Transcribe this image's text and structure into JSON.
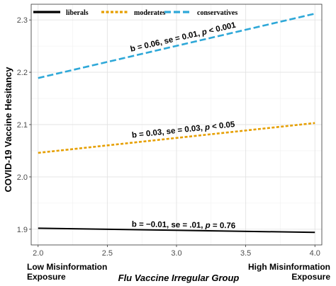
{
  "chart_data": {
    "type": "line",
    "xlabel": "Flu Vaccine Irregular Group",
    "ylabel": "COVID-19 Vaccine Hesitancy",
    "xlim": [
      1.95,
      4.05
    ],
    "ylim": [
      1.87,
      2.33
    ],
    "x_ticks": [
      "2.0",
      "2.5",
      "3.0",
      "3.5",
      "4.0"
    ],
    "y_ticks": [
      "1.9",
      "2.0",
      "2.1",
      "2.2",
      "2.3"
    ],
    "grid": true,
    "legend_position": "top",
    "x_end_labels": {
      "low": [
        "Low Misinformation",
        "Exposure"
      ],
      "high": [
        "High Misinformation",
        "Exposure"
      ]
    },
    "series": [
      {
        "name": "liberals",
        "style": "solid",
        "color": "#000000",
        "x": [
          2.0,
          4.0
        ],
        "y": [
          1.902,
          1.894
        ],
        "annotation": "b = −0.01, se = .01, p = 0.76"
      },
      {
        "name": "moderates",
        "style": "dotted",
        "color": "#E69F00",
        "x": [
          2.0,
          4.0
        ],
        "y": [
          2.046,
          2.103
        ],
        "annotation": "b = 0.03, se = 0.03, p < 0.05"
      },
      {
        "name": "conservatives",
        "style": "dashed",
        "color": "#2EA8D8",
        "x": [
          2.0,
          4.0
        ],
        "y": [
          2.189,
          2.312
        ],
        "annotation": "b = 0.06, se = 0.01, p < 0.001"
      }
    ]
  }
}
